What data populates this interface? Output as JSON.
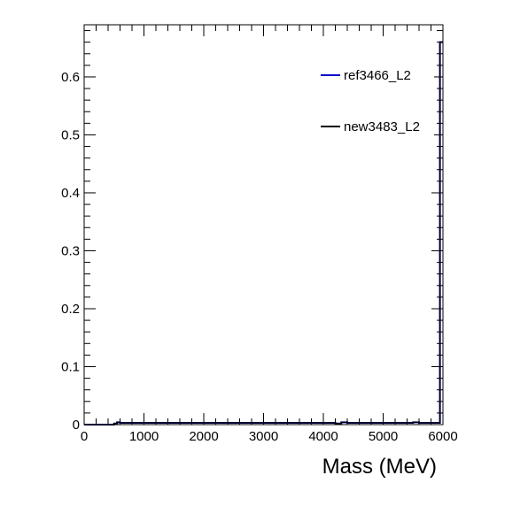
{
  "chart_data": {
    "type": "line",
    "title": "",
    "xlabel": "Mass (MeV)",
    "ylabel": "",
    "xlim": [
      0,
      6000
    ],
    "ylim": [
      0,
      0.69
    ],
    "x_ticks": [
      0,
      1000,
      2000,
      3000,
      4000,
      5000,
      6000
    ],
    "x_tick_labels": [
      "0",
      "1000",
      "2000",
      "3000",
      "4000",
      "5000",
      "6000"
    ],
    "y_ticks": [
      0,
      0.1,
      0.2,
      0.3,
      0.4,
      0.5,
      0.6
    ],
    "y_tick_labels": [
      "0",
      "0.1",
      "0.2",
      "0.3",
      "0.4",
      "0.5",
      "0.6"
    ],
    "grid": false,
    "legend_position": "top-right",
    "series": [
      {
        "name": "ref3466_L2",
        "color": "#0000cc",
        "step": true,
        "x": [
          0,
          450,
          500,
          550,
          600,
          1000,
          2000,
          3000,
          4000,
          4200,
          4300,
          4400,
          5000,
          5500,
          5600,
          5700,
          5900,
          5950,
          6000
        ],
        "y": [
          0,
          0,
          0.002,
          0.004,
          0.003,
          0.003,
          0.003,
          0.003,
          0.003,
          0.002,
          0.004,
          0.003,
          0.003,
          0.004,
          0.003,
          0.003,
          0.003,
          0.66,
          0.66
        ]
      },
      {
        "name": "new3483_L2",
        "color": "#000000",
        "step": true,
        "x": [
          0,
          450,
          500,
          550,
          600,
          1000,
          2000,
          3000,
          4000,
          4200,
          4300,
          4400,
          5000,
          5500,
          5600,
          5700,
          5900,
          5950,
          6000
        ],
        "y": [
          0,
          0,
          0.002,
          0.004,
          0.003,
          0.003,
          0.003,
          0.003,
          0.003,
          0.002,
          0.004,
          0.003,
          0.003,
          0.004,
          0.003,
          0.003,
          0.003,
          0.66,
          0.66
        ]
      }
    ]
  }
}
